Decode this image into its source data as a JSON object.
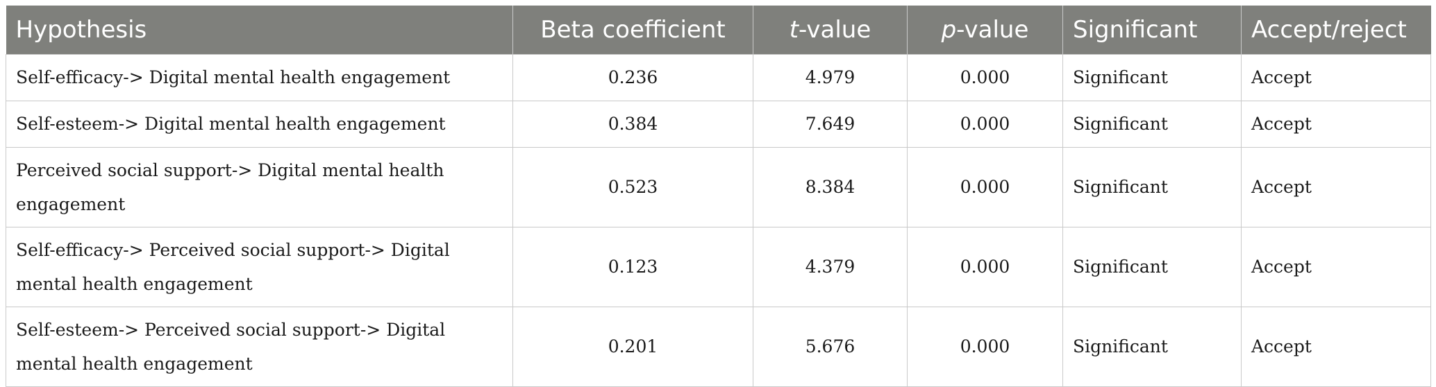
{
  "table": {
    "headers": {
      "hypothesis": "Hypothesis",
      "beta": "Beta coefficient",
      "t_var": "t",
      "t_rest": "-value",
      "p_var": "p",
      "p_rest": "-value",
      "significant": "Significant",
      "accept_reject": "Accept/reject"
    },
    "rows": [
      {
        "hypothesis": "Self-efficacy-> Digital mental health engagement",
        "beta": "0.236",
        "t_value": "4.979",
        "p_value": "0.000",
        "significant": "Significant",
        "decision": "Accept"
      },
      {
        "hypothesis": "Self-esteem-> Digital mental health engagement",
        "beta": "0.384",
        "t_value": "7.649",
        "p_value": "0.000",
        "significant": "Significant",
        "decision": "Accept"
      },
      {
        "hypothesis": "Perceived social support-> Digital mental health engagement",
        "beta": "0.523",
        "t_value": "8.384",
        "p_value": "0.000",
        "significant": "Significant",
        "decision": "Accept"
      },
      {
        "hypothesis": "Self-efficacy-> Perceived social support-> Digital mental health engagement",
        "beta": "0.123",
        "t_value": "4.379",
        "p_value": "0.000",
        "significant": "Significant",
        "decision": "Accept"
      },
      {
        "hypothesis": "Self-esteem-> Perceived social support-> Digital mental health engagement",
        "beta": "0.201",
        "t_value": "5.676",
        "p_value": "0.000",
        "significant": "Significant",
        "decision": "Accept"
      }
    ]
  }
}
